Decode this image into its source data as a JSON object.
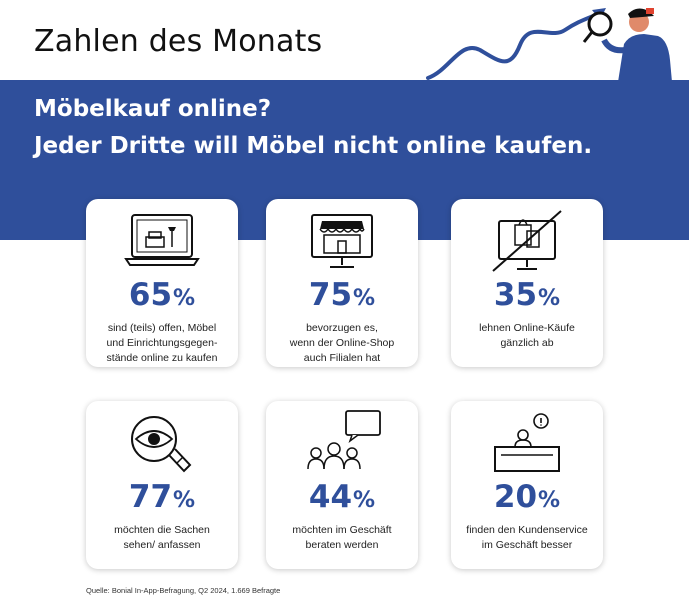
{
  "header": {
    "title": "Zahlen des Monats"
  },
  "banner": {
    "line1": "Möbelkauf online?",
    "line2": "Jeder Dritte will Möbel nicht online kaufen."
  },
  "cards": [
    {
      "icon": "laptop-furniture-icon",
      "value": "65",
      "unit": "%",
      "desc": [
        "sind (teils) offen, Möbel",
        "und Einrichtungsgegen-",
        "stände online zu kaufen"
      ]
    },
    {
      "icon": "online-shop-monitor-icon",
      "value": "75",
      "unit": "%",
      "desc": [
        "bevorzugen es,",
        "wenn der Online-Shop",
        "auch Filialen hat"
      ]
    },
    {
      "icon": "no-online-shopping-icon",
      "value": "35",
      "unit": "%",
      "desc": [
        "lehnen Online-Käufe",
        "gänzlich ab"
      ]
    },
    {
      "icon": "eye-magnifier-icon",
      "value": "77",
      "unit": "%",
      "desc": [
        "möchten die Sachen",
        "sehen/ anfassen"
      ]
    },
    {
      "icon": "consultation-group-icon",
      "value": "44",
      "unit": "%",
      "desc": [
        "möchten im Geschäft",
        "beraten werden"
      ]
    },
    {
      "icon": "service-desk-icon",
      "value": "20",
      "unit": "%",
      "desc": [
        "finden den Kundenservice",
        "im Geschäft besser"
      ]
    }
  ],
  "source": "Quelle: Bonial In-App-Befragung, Q2 2024, 1.669 Befragte",
  "colors": {
    "brand_blue": "#2f4f9b",
    "text_dark": "#111111"
  }
}
